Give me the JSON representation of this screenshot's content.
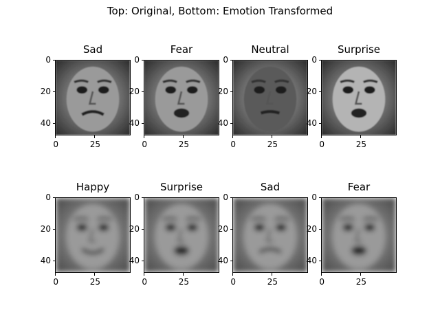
{
  "figure": {
    "suptitle": "Top: Original, Bottom: Emotion Transformed",
    "yticks": [
      "0",
      "20",
      "40"
    ],
    "xticks": [
      "0",
      "25"
    ],
    "panels": [
      {
        "row": "top",
        "title": "Sad",
        "tone": "original",
        "expression": "sad"
      },
      {
        "row": "top",
        "title": "Fear",
        "tone": "original",
        "expression": "fear"
      },
      {
        "row": "top",
        "title": "Neutral",
        "tone": "original",
        "expression": "neutral"
      },
      {
        "row": "top",
        "title": "Surprise",
        "tone": "original",
        "expression": "surprise"
      },
      {
        "row": "bottom",
        "title": "Happy",
        "tone": "transformed",
        "expression": "happy"
      },
      {
        "row": "bottom",
        "title": "Surprise",
        "tone": "transformed",
        "expression": "surprise"
      },
      {
        "row": "bottom",
        "title": "Sad",
        "tone": "transformed",
        "expression": "sad"
      },
      {
        "row": "bottom",
        "title": "Fear",
        "tone": "transformed",
        "expression": "fear"
      }
    ]
  }
}
